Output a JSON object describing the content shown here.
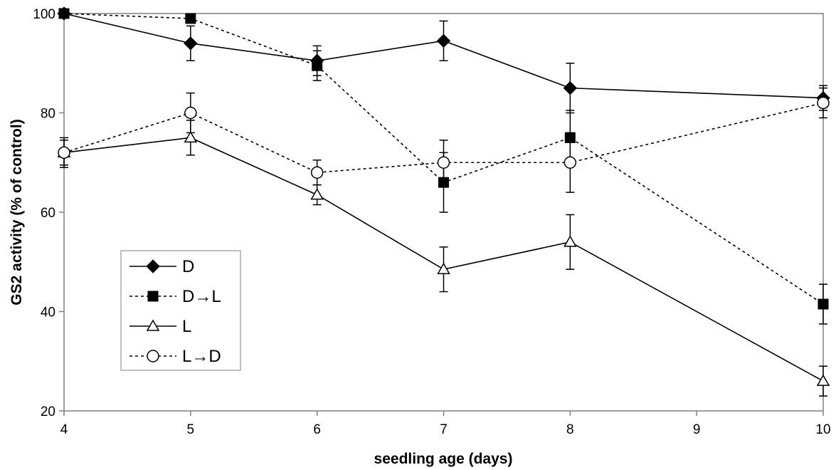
{
  "chart_data": {
    "type": "line",
    "title": "",
    "xlabel": "seedling age (days)",
    "ylabel": "GS2 activity (% of control)",
    "xlim": [
      4,
      10
    ],
    "ylim": [
      20,
      100
    ],
    "xticks": [
      4,
      5,
      6,
      7,
      8,
      9,
      10
    ],
    "yticks": [
      20,
      40,
      60,
      80,
      100
    ],
    "grid": false,
    "legend_position": "lower-left",
    "series": [
      {
        "name": "D",
        "marker": "diamond-filled",
        "line": "solid",
        "x": [
          4,
          5,
          6,
          7,
          8,
          10
        ],
        "y": [
          100,
          94,
          90.5,
          94.5,
          85,
          83
        ],
        "err": [
          0,
          3.5,
          3,
          4,
          5,
          2.5
        ]
      },
      {
        "name": "D→L",
        "marker": "square-filled",
        "line": "dotted",
        "x": [
          4,
          5,
          6,
          7,
          8,
          10
        ],
        "y": [
          100,
          99,
          89.5,
          66,
          75,
          41.5
        ],
        "err": [
          0,
          0,
          3,
          6,
          5.5,
          4
        ]
      },
      {
        "name": "L",
        "marker": "triangle-open",
        "line": "solid",
        "x": [
          4,
          5,
          6,
          7,
          8,
          10
        ],
        "y": [
          72,
          75,
          63.5,
          48.5,
          54,
          26
        ],
        "err": [
          3,
          3.5,
          2,
          4.5,
          5.5,
          3
        ]
      },
      {
        "name": "L→D",
        "marker": "circle-open",
        "line": "dotted",
        "x": [
          4,
          5,
          6,
          7,
          8,
          10
        ],
        "y": [
          72,
          80,
          68,
          70,
          70,
          82
        ],
        "err": [
          2.5,
          4,
          2.5,
          4.5,
          6,
          3
        ]
      }
    ]
  }
}
